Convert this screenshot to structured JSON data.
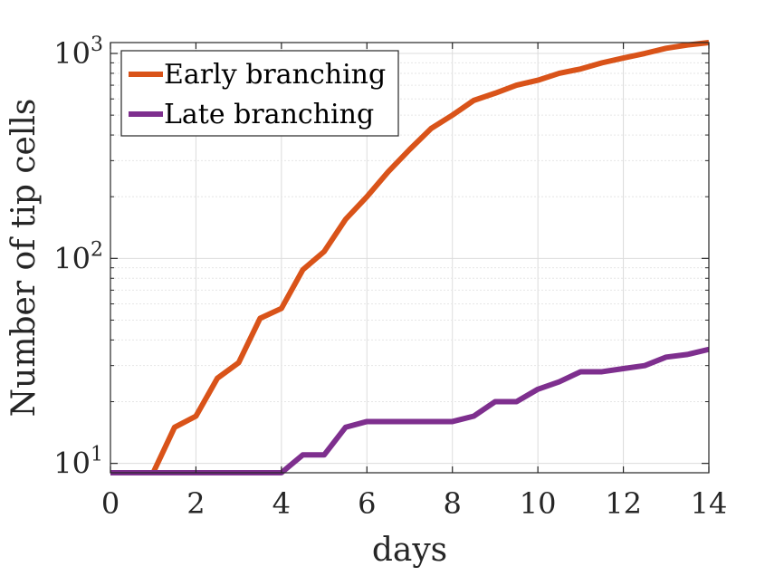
{
  "chart_data": {
    "type": "line",
    "title": "",
    "xlabel": "days",
    "ylabel": "Number of tip cells",
    "xlim": [
      0,
      14
    ],
    "ylim": [
      9,
      1130
    ],
    "yscale": "log",
    "grid": true,
    "legend_position": "top-left",
    "xticks": [
      0,
      2,
      4,
      6,
      8,
      10,
      12,
      14
    ],
    "xtick_labels": [
      "0",
      "2",
      "4",
      "6",
      "8",
      "10",
      "12",
      "14"
    ],
    "yticks": [
      10,
      100,
      1000
    ],
    "ytick_labels": [
      {
        "base": "10",
        "exp": "1"
      },
      {
        "base": "10",
        "exp": "2"
      },
      {
        "base": "10",
        "exp": "3"
      }
    ],
    "series": [
      {
        "name": "Early branching",
        "color": "#D95319",
        "x": [
          0,
          0.5,
          1,
          1.5,
          2,
          2.5,
          3,
          3.5,
          4,
          4.5,
          5,
          5.5,
          6,
          6.5,
          7,
          7.5,
          8,
          8.5,
          9,
          9.5,
          10,
          10.5,
          11,
          11.5,
          12,
          12.5,
          13,
          13.5,
          14
        ],
        "values": [
          9,
          9,
          9,
          15,
          17,
          26,
          31,
          51,
          57,
          88,
          108,
          155,
          200,
          265,
          340,
          430,
          500,
          590,
          640,
          700,
          740,
          800,
          840,
          900,
          950,
          1000,
          1060,
          1100,
          1130
        ]
      },
      {
        "name": "Late branching",
        "color": "#7E2F8E",
        "x": [
          0,
          0.5,
          1,
          1.5,
          2,
          2.5,
          3,
          3.5,
          4,
          4.5,
          5,
          5.5,
          6,
          6.5,
          7,
          7.5,
          8,
          8.5,
          9,
          9.5,
          10,
          10.5,
          11,
          11.5,
          12,
          12.5,
          13,
          13.5,
          14
        ],
        "values": [
          9,
          9,
          9,
          9,
          9,
          9,
          9,
          9,
          9,
          11,
          11,
          15,
          16,
          16,
          16,
          16,
          16,
          17,
          20,
          20,
          23,
          25,
          28,
          28,
          29,
          30,
          33,
          34,
          36
        ]
      }
    ]
  }
}
